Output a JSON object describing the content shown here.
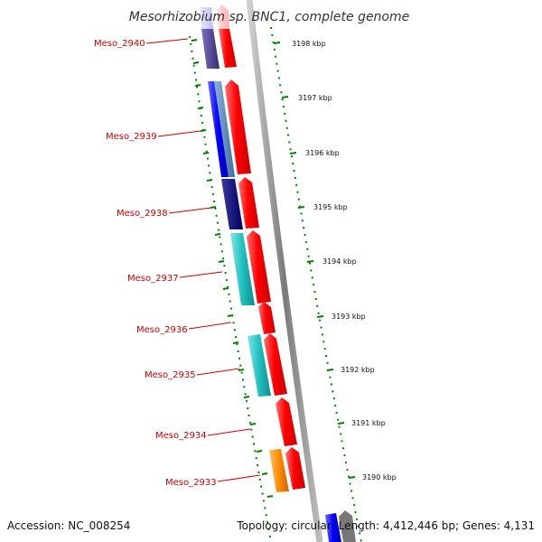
{
  "header": {
    "title": "Mesorhizobium sp. BNC1, complete genome"
  },
  "footer": {
    "accession": "Accession: NC_008254",
    "topology": "Topology: circular; Length: 4,412,446 bp; Genes: 4,131"
  },
  "genes": [
    {
      "label": "Meso_2940"
    },
    {
      "label": "Meso_2939"
    },
    {
      "label": "Meso_2938"
    },
    {
      "label": "Meso_2937"
    },
    {
      "label": "Meso_2936"
    },
    {
      "label": "Meso_2935"
    },
    {
      "label": "Meso_2934"
    },
    {
      "label": "Meso_2933"
    }
  ],
  "scale_ticks": [
    {
      "label": "3198 kbp"
    },
    {
      "label": "3197 kbp"
    },
    {
      "label": "3196 kbp"
    },
    {
      "label": "3195 kbp"
    },
    {
      "label": "3194 kbp"
    },
    {
      "label": "3193 kbp"
    },
    {
      "label": "3192 kbp"
    },
    {
      "label": "3191 kbp"
    },
    {
      "label": "3190 kbp"
    }
  ],
  "colors": {
    "backbone": "#888888",
    "cds_arrow": "#ff0000",
    "gene_label": "#cc0000",
    "tick_green": "#008000",
    "blue": "#0000ff",
    "steelblue": "#4682b4",
    "navy": "#000080",
    "slate": "#483d8b",
    "cyan": "#20b2aa",
    "orange": "#ff8c00"
  }
}
